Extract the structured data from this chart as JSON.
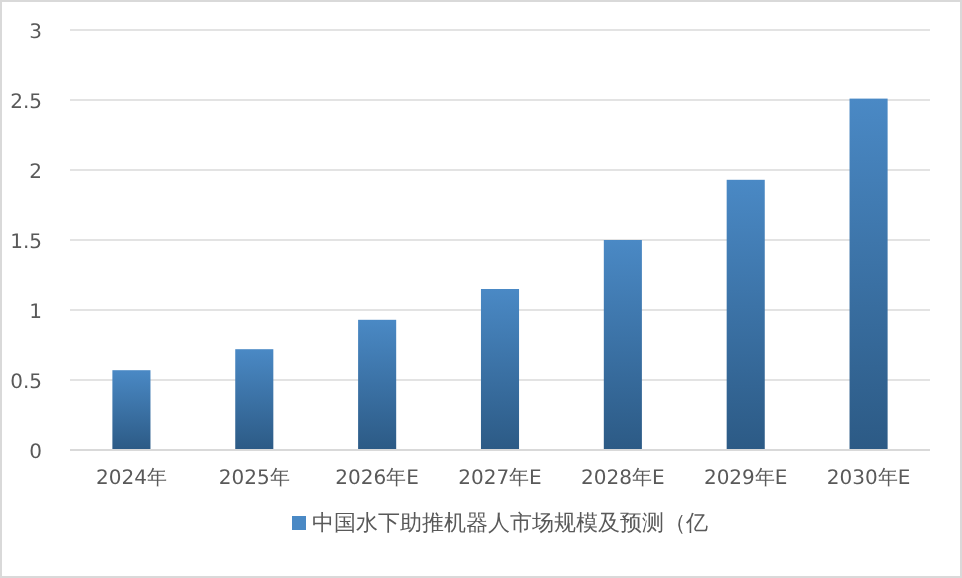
{
  "chart_data": {
    "type": "bar",
    "categories": [
      "2024年",
      "2025年",
      "2026年E",
      "2027年E",
      "2028年E",
      "2029年E",
      "2030年E"
    ],
    "series": [
      {
        "name": "中国水下助推机器人市场规模及预测（亿",
        "color": "#4a89c5",
        "values": [
          0.57,
          0.72,
          0.93,
          1.15,
          1.5,
          1.93,
          2.51
        ]
      }
    ],
    "ylim": [
      0,
      3
    ],
    "yticks": [
      0,
      0.5,
      1,
      1.5,
      2,
      2.5,
      3
    ],
    "grid": "y",
    "legend": "bottom"
  }
}
